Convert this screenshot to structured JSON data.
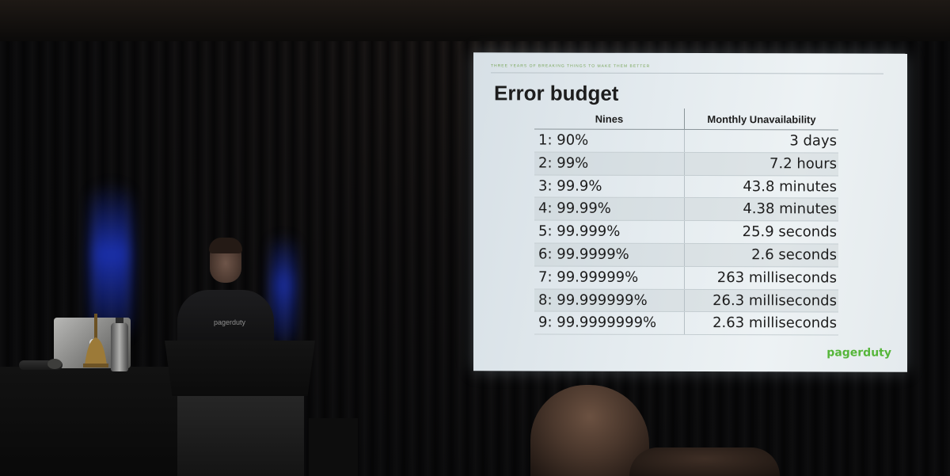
{
  "slide": {
    "kicker": "THREE YEARS OF BREAKING THINGS TO MAKE THEM BETTER",
    "title": "Error budget",
    "table": {
      "headers": [
        "Nines",
        "Monthly Unavailability"
      ],
      "rows": [
        {
          "nines": "1: 90%",
          "unavailability": "3 days"
        },
        {
          "nines": "2: 99%",
          "unavailability": "7.2 hours"
        },
        {
          "nines": "3: 99.9%",
          "unavailability": "43.8 minutes"
        },
        {
          "nines": "4: 99.99%",
          "unavailability": "4.38 minutes"
        },
        {
          "nines": "5: 99.999%",
          "unavailability": "25.9 seconds"
        },
        {
          "nines": "6: 99.9999%",
          "unavailability": "2.6 seconds"
        },
        {
          "nines": "7: 99.99999%",
          "unavailability": "263 milliseconds"
        },
        {
          "nines": "8: 99.999999%",
          "unavailability": "26.3 milliseconds"
        },
        {
          "nines": "9: 99.9999999%",
          "unavailability": "2.63 milliseconds"
        }
      ]
    },
    "logo": "pagerduty"
  },
  "speaker": {
    "shirt_text": "pagerduty"
  },
  "colors": {
    "brand_green": "#56b63a",
    "stage_light_blue": "#1e37c8",
    "screen_bg": "#e4ebef"
  }
}
